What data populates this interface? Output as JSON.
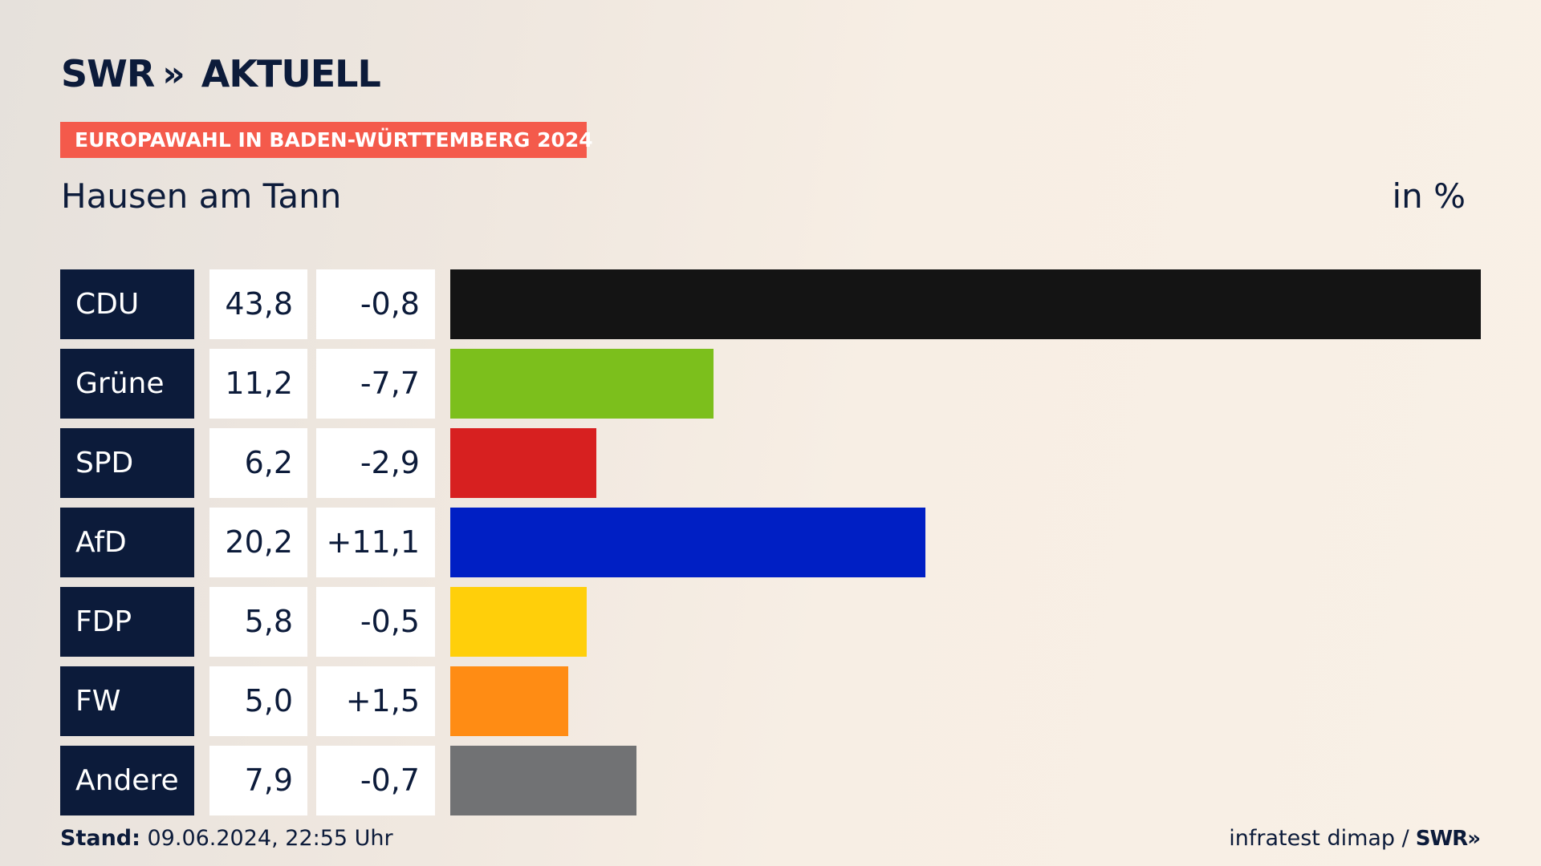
{
  "header": {
    "logo_text": "SWR",
    "logo_chevrons": "»",
    "logo_product": "AKTUELL",
    "badge": "EUROPAWAHL IN BADEN-WÜRTTEMBERG 2024",
    "place": "Hausen am Tann",
    "unit": "in %"
  },
  "colors": {
    "navy": "#0c1b3a",
    "badge": "#f45a4b"
  },
  "chart_data": {
    "type": "bar",
    "orientation": "horizontal",
    "title": "Hausen am Tann",
    "unit": "in %",
    "xlim": [
      0,
      43.8
    ],
    "grid": false,
    "categories": [
      "CDU",
      "Grüne",
      "SPD",
      "AfD",
      "FDP",
      "FW",
      "Andere"
    ],
    "values": [
      43.8,
      11.2,
      6.2,
      20.2,
      5.8,
      5.0,
      7.9
    ],
    "value_labels": [
      "43,8",
      "11,2",
      "6,2",
      "20,2",
      "5,8",
      "5,0",
      "7,9"
    ],
    "change_labels": [
      "-0,8",
      "-7,7",
      "-2,9",
      "+11,1",
      "-0,5",
      "+1,5",
      "-0,7"
    ],
    "colors": [
      "#141414",
      "#7cbf1c",
      "#d72020",
      "#001fc4",
      "#ffcf0a",
      "#ff8c14",
      "#717274"
    ]
  },
  "footer": {
    "stand_label": "Stand:",
    "stand_value": " 09.06.2024, 22:55 Uhr",
    "source": "infratest dimap /",
    "source_logo": "SWR»"
  }
}
